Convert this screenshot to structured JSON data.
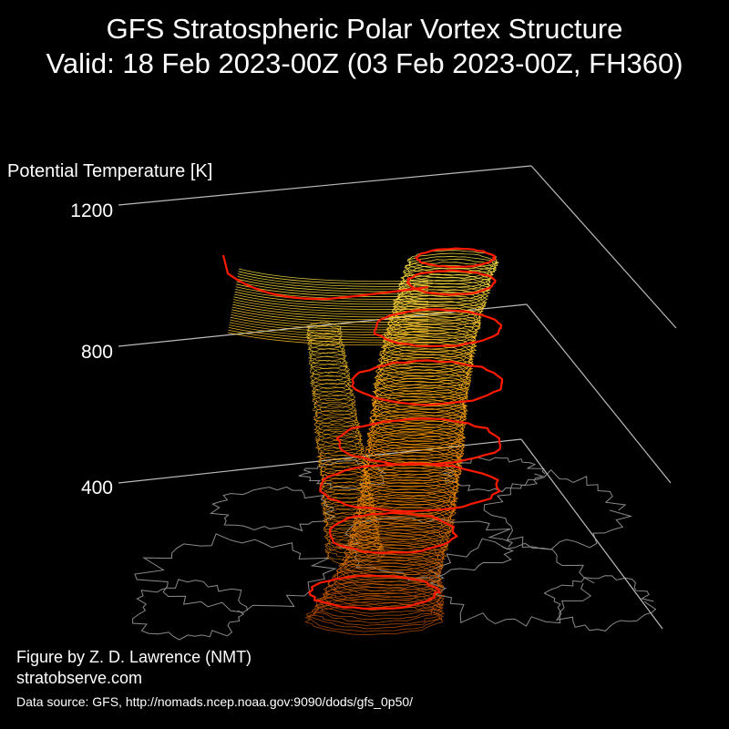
{
  "title_line1": "GFS Stratospheric Polar Vortex Structure",
  "title_line2": "Valid: 18 Feb 2023-00Z  (03 Feb 2023-00Z, FH360)",
  "credits": {
    "author": "Figure by Z. D. Lawrence (NMT)",
    "site": "stratobserve.com",
    "source": "Data source: GFS, http://nomads.ncep.noaa.gov:9090/dods/gfs_0p50/"
  },
  "chart_data": {
    "type": "3d-isosurface",
    "zlabel": "Potential Temperature [K]",
    "zticks": [
      400,
      800,
      1200
    ],
    "grid": true,
    "colors": {
      "background": "#000000",
      "edge_contours": "#ff1a00",
      "surface_low": "#b04a00",
      "surface_mid": "#ff9a00",
      "surface_high": "#ffe84a",
      "coastlines": "#8a8a8a",
      "axes": "#bbbbbb"
    }
  }
}
